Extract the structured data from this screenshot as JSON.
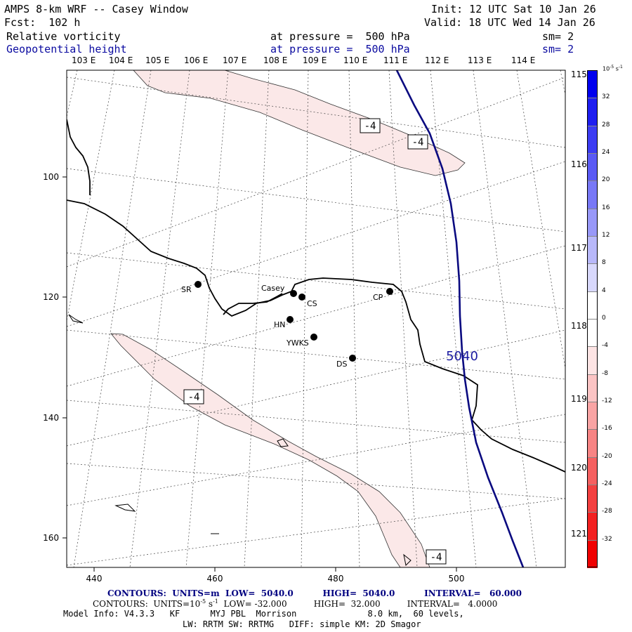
{
  "header": {
    "title": "AMPS 8-km WRF -- Casey Window",
    "forecast": "Fcst:  102 h",
    "init": "Init: 12 UTC Sat 10 Jan 26",
    "valid": "Valid: 18 UTC Wed 14 Jan 26",
    "field1": {
      "name": "Relative vorticity",
      "pressure": "at pressure =  500 hPa",
      "smooth": "sm= 2"
    },
    "field2": {
      "name": "Geopotential height",
      "pressure": "at pressure =  500 hPa",
      "smooth": "sm= 2"
    }
  },
  "axes": {
    "top_lon_labels": [
      "103 E",
      "104 E",
      "105 E",
      "106 E",
      "107 E",
      "108 E",
      "109 E",
      "110 E",
      "111 E",
      "112 E",
      "113 E",
      "114 E"
    ],
    "right_lon_labels": [
      "115 E",
      "116 E",
      "117 E",
      "118 E",
      "119 E",
      "120 E",
      "121 E"
    ],
    "x_ticks": [
      "440",
      "460",
      "480",
      "500"
    ],
    "y_ticks": [
      "100",
      "120",
      "140",
      "160"
    ]
  },
  "stations": [
    {
      "id": "SR",
      "label": "SR"
    },
    {
      "id": "Casey",
      "label": "Casey"
    },
    {
      "id": "CS",
      "label": "CS"
    },
    {
      "id": "CP",
      "label": "CP"
    },
    {
      "id": "HN",
      "label": "HN"
    },
    {
      "id": "YWKS",
      "label": "YWKS"
    },
    {
      "id": "DS",
      "label": "DS"
    }
  ],
  "contour_labels": {
    "vort_a": "-4",
    "vort_b": "-4",
    "vort_c": "-4",
    "vort_d": "-4",
    "height": "5040"
  },
  "colorbar": {
    "unit": "10",
    "unit_exp": "-5",
    "unit_suffix": " s",
    "unit_suffix_exp": "-1",
    "levels": [
      "32",
      "28",
      "24",
      "20",
      "16",
      "12",
      "8",
      "4",
      "0",
      "-4",
      "-8",
      "-12",
      "-16",
      "-20",
      "-24",
      "-28",
      "-32"
    ],
    "colors": [
      "#0000ee",
      "#1e1ef0",
      "#3c3cf2",
      "#5a5af4",
      "#7878f6",
      "#9898f8",
      "#b8b8fa",
      "#d8d8fc",
      "#ffffff",
      "#ffffff",
      "#fde4e4",
      "#fbc4c4",
      "#f9a4a4",
      "#f78484",
      "#f56060",
      "#f34040",
      "#f22020",
      "#f00000"
    ]
  },
  "footer": {
    "height_contours": "CONTOURS:  UNITS=m  LOW=  5040.0          HIGH=  5040.0          INTERVAL=   60.000",
    "vort_contours": "CONTOURS:  UNITS=10",
    "vort_contours_exp1": "-5",
    "vort_contours_mid": " s",
    "vort_contours_exp2": "-1",
    "vort_contours_rest": "  LOW= -32.000          HIGH=  32.000          INTERVAL=   4.0000",
    "model_info": "Model Info: V4.3.3   KF      MYJ PBL  Morrison              8.0 km,  60 levels,",
    "physics": "LW: RRTM SW: RRTMG   DIFF: simple KM: 2D Smagor"
  },
  "colors": {
    "vort_fill": "#fbe8e8",
    "height_line": "#0a0a80",
    "coast": "#000000"
  }
}
